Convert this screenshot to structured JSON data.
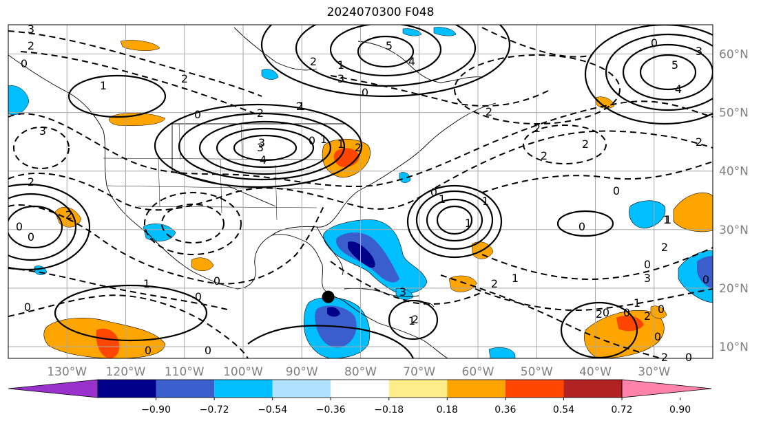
{
  "title": "2024070300 F048",
  "map": {
    "lon_range": [
      -140,
      -20
    ],
    "lat_range": [
      8,
      65
    ],
    "lon_labels": [
      "130°W",
      "120°W",
      "110°W",
      "100°W",
      "90°W",
      "80°W",
      "70°W",
      "60°W",
      "50°W",
      "40°W",
      "30°W"
    ],
    "lat_labels": [
      "10°N",
      "20°N",
      "30°N",
      "40°N",
      "50°N",
      "60°N"
    ],
    "gridlines": true,
    "marker": {
      "label": "storm-center",
      "lon": -85.5,
      "lat": 18.5
    }
  },
  "colorbar": {
    "colors": [
      "#9932cc",
      "#00008b",
      "#3a5fcd",
      "#00bfff",
      "#b0e2ff",
      "#ffffff",
      "#ffec8b",
      "#ffa500",
      "#ff4500",
      "#b22222",
      "#ff82ab"
    ],
    "tick_labels": [
      "−0.90",
      "−0.72",
      "−0.54",
      "−0.36",
      "−0.18",
      "0.18",
      "0.36",
      "0.54",
      "0.72",
      "0.90"
    ],
    "extend": "both"
  },
  "contour_labels": [
    "3",
    "2",
    "0",
    "1",
    "2",
    "5",
    "4",
    "2",
    "1",
    "3",
    "2",
    "2",
    "0",
    "1",
    "3",
    "4",
    "3",
    "0",
    "1",
    "1",
    "2",
    "3",
    "2",
    "0",
    "0",
    "2",
    "0",
    "5",
    "4",
    "3",
    "2",
    "2",
    "2",
    "2",
    "2",
    "0",
    "1",
    "0",
    "0",
    "1",
    "2",
    "1",
    "2",
    "0",
    "1",
    "0",
    "0",
    "0",
    "0",
    "1",
    "2",
    "3",
    "0",
    "3",
    "1",
    "0",
    "0",
    "1",
    "2",
    "2",
    "0",
    "0",
    "2",
    "1",
    "1",
    "0",
    "0",
    "0"
  ]
}
